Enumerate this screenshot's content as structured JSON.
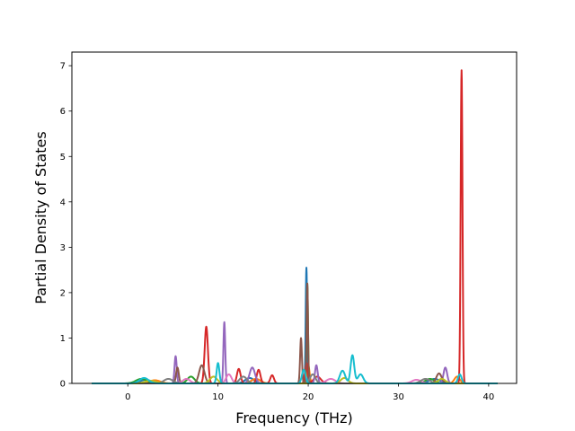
{
  "chart_data": {
    "type": "line",
    "title": "",
    "xlabel": "Frequency (THz)",
    "ylabel": "Partial Density of States",
    "xlim": [
      -6.2,
      43.1
    ],
    "ylim": [
      0,
      7.3
    ],
    "xticks": [
      0,
      10,
      20,
      30,
      40
    ],
    "yticks": [
      0,
      1,
      2,
      3,
      4,
      5,
      6,
      7
    ],
    "xtick_labels": [
      "0",
      "10",
      "20",
      "30",
      "40"
    ],
    "ytick_labels": [
      "0",
      "1",
      "2",
      "3",
      "4",
      "5",
      "6",
      "7"
    ],
    "grid": false,
    "legend": "none",
    "x_range": [
      -4,
      41
    ],
    "series": [
      {
        "color": "#1f77b4",
        "peaks": [
          [
            2,
            0.08,
            0.6
          ],
          [
            13.5,
            0.12,
            0.5
          ],
          [
            19.8,
            2.55,
            0.08
          ],
          [
            34,
            0.1,
            0.6
          ]
        ]
      },
      {
        "color": "#ff7f0e",
        "peaks": [
          [
            3,
            0.07,
            0.6
          ],
          [
            14.2,
            0.1,
            0.5
          ],
          [
            20,
            0.4,
            0.15
          ],
          [
            36.5,
            0.15,
            0.3
          ]
        ]
      },
      {
        "color": "#2ca02c",
        "peaks": [
          [
            1.5,
            0.1,
            0.6
          ],
          [
            7,
            0.15,
            0.4
          ],
          [
            19.9,
            2.2,
            0.08
          ],
          [
            33.5,
            0.1,
            0.5
          ]
        ]
      },
      {
        "color": "#d62728",
        "peaks": [
          [
            8.7,
            1.25,
            0.18
          ],
          [
            12.3,
            0.32,
            0.2
          ],
          [
            14.5,
            0.3,
            0.2
          ],
          [
            16,
            0.18,
            0.2
          ],
          [
            19.8,
            0.45,
            0.15
          ],
          [
            21,
            0.15,
            0.4
          ],
          [
            37,
            6.9,
            0.1
          ]
        ]
      },
      {
        "color": "#9467bd",
        "peaks": [
          [
            5.3,
            0.6,
            0.12
          ],
          [
            10.7,
            1.35,
            0.1
          ],
          [
            13.8,
            0.35,
            0.3
          ],
          [
            20.9,
            0.4,
            0.15
          ],
          [
            35.2,
            0.35,
            0.2
          ]
        ]
      },
      {
        "color": "#8c564b",
        "peaks": [
          [
            5.5,
            0.35,
            0.15
          ],
          [
            8.2,
            0.4,
            0.3
          ],
          [
            19.2,
            1.0,
            0.1
          ],
          [
            19.9,
            2.2,
            0.08
          ],
          [
            34.5,
            0.22,
            0.3
          ]
        ]
      },
      {
        "color": "#e377c2",
        "peaks": [
          [
            6.5,
            0.1,
            0.4
          ],
          [
            11.2,
            0.2,
            0.3
          ],
          [
            22.5,
            0.1,
            0.5
          ],
          [
            32,
            0.08,
            0.5
          ]
        ]
      },
      {
        "color": "#7f7f7f",
        "peaks": [
          [
            4.5,
            0.1,
            0.5
          ],
          [
            12.8,
            0.15,
            0.4
          ],
          [
            20.5,
            0.2,
            0.3
          ],
          [
            33,
            0.1,
            0.5
          ]
        ]
      },
      {
        "color": "#bcbd22",
        "peaks": [
          [
            2.5,
            0.06,
            0.6
          ],
          [
            9.5,
            0.15,
            0.4
          ],
          [
            24,
            0.12,
            0.4
          ],
          [
            34.8,
            0.1,
            0.4
          ]
        ]
      },
      {
        "color": "#17becf",
        "peaks": [
          [
            1.8,
            0.12,
            0.5
          ],
          [
            10,
            0.45,
            0.15
          ],
          [
            19.5,
            0.3,
            0.2
          ],
          [
            23.8,
            0.28,
            0.3
          ],
          [
            24.9,
            0.62,
            0.2
          ],
          [
            25.8,
            0.2,
            0.3
          ],
          [
            36.8,
            0.2,
            0.2
          ]
        ]
      }
    ]
  }
}
